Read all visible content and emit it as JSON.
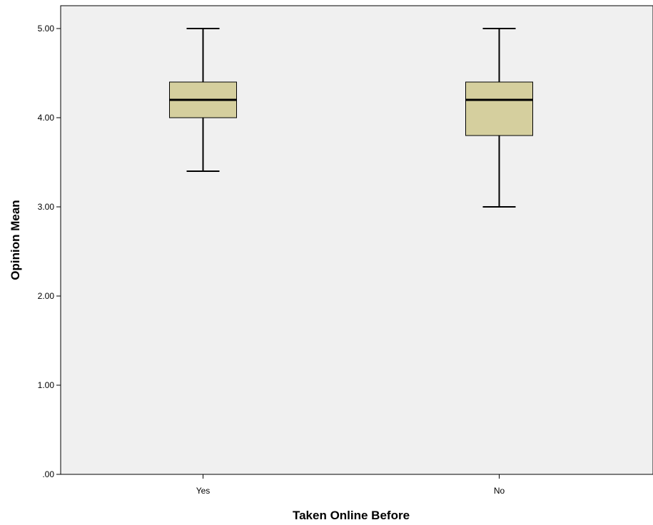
{
  "chart_data": {
    "type": "boxplot",
    "xlabel": "Taken Online Before",
    "ylabel": "Opinion Mean",
    "ylim": [
      0,
      5
    ],
    "y_ticks": [
      {
        "value": 0,
        "label": ".00"
      },
      {
        "value": 1,
        "label": "1.00"
      },
      {
        "value": 2,
        "label": "2.00"
      },
      {
        "value": 3,
        "label": "3.00"
      },
      {
        "value": 4,
        "label": "4.00"
      },
      {
        "value": 5,
        "label": "5.00"
      }
    ],
    "categories": [
      "Yes",
      "No"
    ],
    "boxes": [
      {
        "category": "Yes",
        "min": 3.4,
        "q1": 4.0,
        "median": 4.2,
        "q3": 4.4,
        "max": 5.0
      },
      {
        "category": "No",
        "min": 3.0,
        "q1": 3.8,
        "median": 4.2,
        "q3": 4.4,
        "max": 5.0
      }
    ],
    "grid": false,
    "colors": {
      "plot_background": "#f0f0f0",
      "box_fill": "#d5cf9e",
      "line": "#000000"
    }
  }
}
